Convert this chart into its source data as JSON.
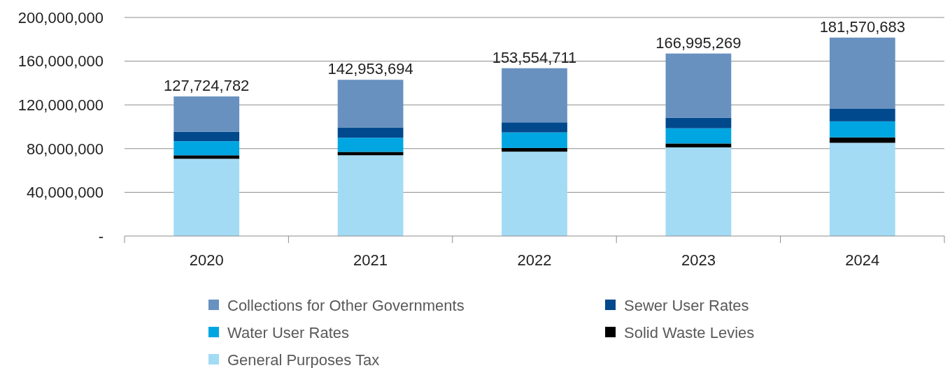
{
  "chart_data": {
    "type": "bar",
    "stacked": true,
    "categories": [
      "2020",
      "2021",
      "2022",
      "2023",
      "2024"
    ],
    "series": [
      {
        "name": "General Purposes Tax",
        "color": "#a3dbf5",
        "values": [
          70700000,
          73900000,
          77200000,
          81100000,
          85300000
        ]
      },
      {
        "name": "Solid Waste Levies",
        "color": "#000000",
        "values": [
          3200000,
          3100000,
          3400000,
          3600000,
          5000000
        ]
      },
      {
        "name": "Water User Rates",
        "color": "#00a6e2",
        "values": [
          12900000,
          12900000,
          14200000,
          13900000,
          14600000
        ]
      },
      {
        "name": "Sewer User Rates",
        "color": "#00498c",
        "values": [
          8700000,
          9500000,
          9200000,
          9700000,
          11800000
        ]
      },
      {
        "name": "Collections for Other Governments",
        "color": "#6891c0",
        "values": [
          32224782,
          43553694,
          49554711,
          58695269,
          64870683
        ]
      }
    ],
    "totals": [
      "127,724,782",
      "142,953,694",
      "153,554,711",
      "166,995,269",
      "181,570,683"
    ],
    "ylim": [
      0,
      200000000
    ],
    "yticks": [
      {
        "value": 0,
        "label": "-"
      },
      {
        "value": 40000000,
        "label": "40,000,000"
      },
      {
        "value": 80000000,
        "label": "80,000,000"
      },
      {
        "value": 120000000,
        "label": "120,000,000"
      },
      {
        "value": 160000000,
        "label": "160,000,000"
      },
      {
        "value": 200000000,
        "label": "200,000,000"
      }
    ],
    "grid": "y",
    "legend": "bottom"
  }
}
